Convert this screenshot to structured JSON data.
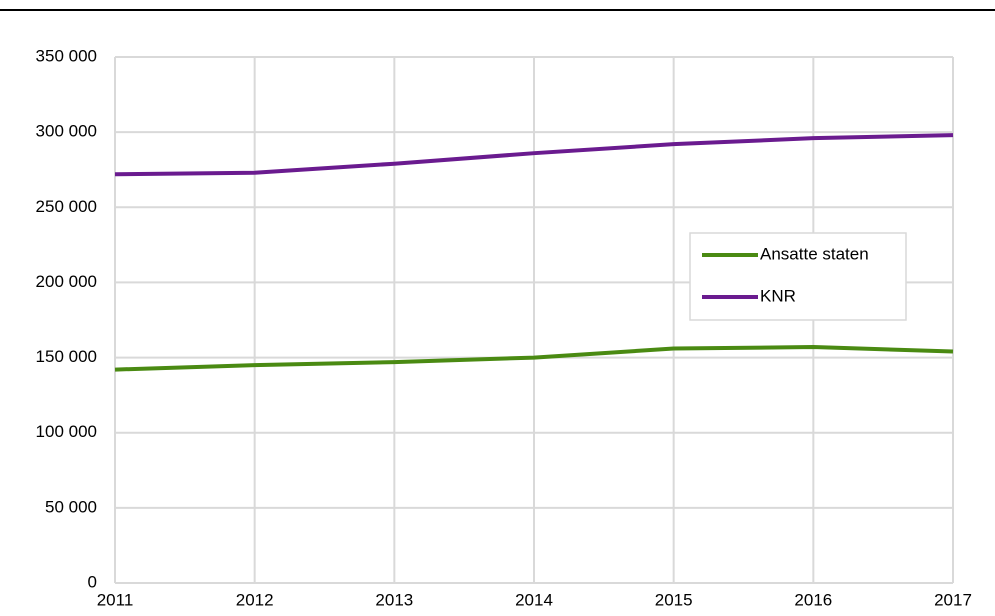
{
  "chart_data": {
    "type": "line",
    "x": [
      2011,
      2012,
      2013,
      2014,
      2015,
      2016,
      2017
    ],
    "xlim": [
      2011,
      2017
    ],
    "xticks": [
      2011,
      2012,
      2013,
      2014,
      2015,
      2016,
      2017
    ],
    "ylim": [
      0,
      350000
    ],
    "yticks": [
      0,
      {
        "value": 50000,
        "label": "50 000"
      },
      {
        "value": 100000,
        "label": "100 000"
      },
      {
        "value": 150000,
        "label": "150 000"
      },
      {
        "value": 200000,
        "label": "200 000"
      },
      {
        "value": 250000,
        "label": "250 000"
      },
      {
        "value": 300000,
        "label": "300 000"
      },
      {
        "value": 350000,
        "label": "350 000"
      }
    ],
    "grid": true,
    "legend_position": "right",
    "series": [
      {
        "name": "Ansatte staten",
        "color": "#4a8a12",
        "values": [
          142000,
          145000,
          147000,
          150000,
          156000,
          157000,
          154000
        ]
      },
      {
        "name": "KNR",
        "color": "#6a1b8f",
        "values": [
          272000,
          273000,
          279000,
          286000,
          292000,
          296000,
          298000
        ]
      }
    ]
  }
}
